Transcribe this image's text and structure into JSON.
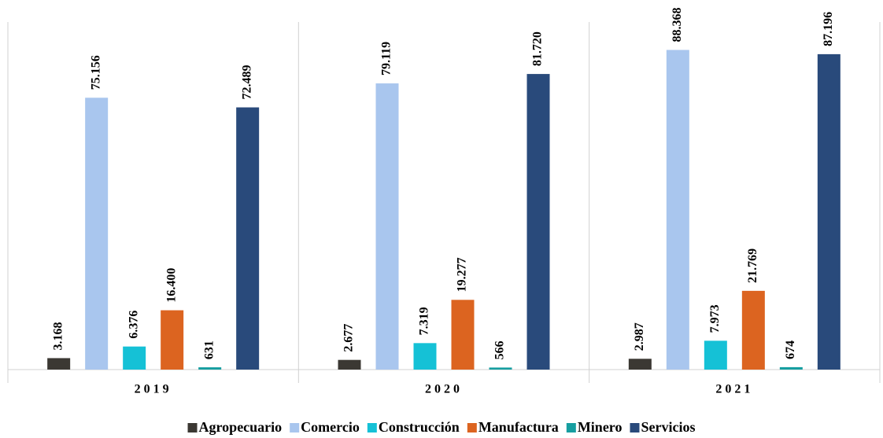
{
  "chart_data": {
    "type": "bar",
    "categories": [
      "2019",
      "2020",
      "2021"
    ],
    "ylim": [
      0,
      100000
    ],
    "series": [
      {
        "name": "Agropecuario",
        "color": "#3b3833",
        "values": [
          3168,
          2677,
          2987
        ],
        "value_labels": [
          "3.168",
          "2.677",
          "2.987"
        ]
      },
      {
        "name": "Comercio",
        "color": "#a9c6ee",
        "values": [
          75156,
          79119,
          88368
        ],
        "value_labels": [
          "75.156",
          "79.119",
          "88.368"
        ]
      },
      {
        "name": "Construcción",
        "color": "#15c1d6",
        "values": [
          6376,
          7319,
          7973
        ],
        "value_labels": [
          "6.376",
          "7.319",
          "7.973"
        ]
      },
      {
        "name": "Manufactura",
        "color": "#dc6420",
        "values": [
          16400,
          19277,
          21769
        ],
        "value_labels": [
          "16.400",
          "19.277",
          "21.769"
        ]
      },
      {
        "name": "Minero",
        "color": "#169ea0",
        "values": [
          631,
          566,
          674
        ],
        "value_labels": [
          "631",
          "566",
          "674"
        ]
      },
      {
        "name": "Servicios",
        "color": "#294a7b",
        "values": [
          72489,
          81720,
          87196
        ],
        "value_labels": [
          "72.489",
          "81.720",
          "87.196"
        ]
      }
    ]
  }
}
